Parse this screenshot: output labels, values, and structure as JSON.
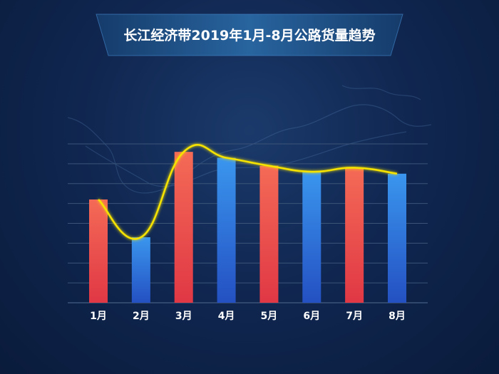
{
  "colors": {
    "background": "#102751",
    "banner": "#1e4f84",
    "grid": "#3b5478",
    "bar_red_top": "#f46a56",
    "bar_red_bottom": "#e03845",
    "bar_blue_top": "#3a96ee",
    "bar_blue_bottom": "#2450c2",
    "trend_line": "#f5e200"
  },
  "chart_data": {
    "type": "bar",
    "title": "长江经济带2019年1月-8月公路货量趋势",
    "categories": [
      "1月",
      "2月",
      "3月",
      "4月",
      "5月",
      "6月",
      "7月",
      "8月"
    ],
    "values": [
      5.2,
      3.3,
      7.6,
      7.3,
      6.9,
      6.6,
      6.8,
      6.5
    ],
    "bar_colors": [
      "red",
      "blue",
      "red",
      "blue",
      "red",
      "blue",
      "red",
      "blue"
    ],
    "ylim": [
      0,
      8
    ],
    "grid": true,
    "trend_line": true,
    "legend": "none"
  }
}
